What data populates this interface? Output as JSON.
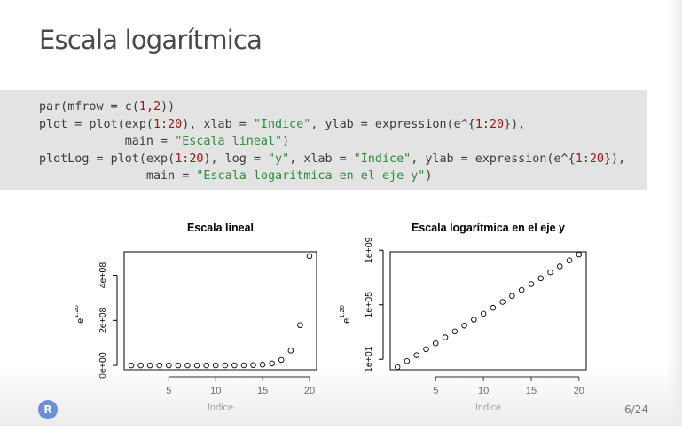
{
  "slide": {
    "title": "Escala logarítmica",
    "page_number": "6/24",
    "logo_text": "R"
  },
  "code": {
    "lines": [
      [
        {
          "t": "par(mfrow = c(",
          "c": "plain"
        },
        {
          "t": "1",
          "c": "num"
        },
        {
          "t": ",",
          "c": "plain"
        },
        {
          "t": "2",
          "c": "num"
        },
        {
          "t": "))",
          "c": "plain"
        }
      ],
      [
        {
          "t": "plot = plot(exp(",
          "c": "plain"
        },
        {
          "t": "1",
          "c": "num"
        },
        {
          "t": ":",
          "c": "plain"
        },
        {
          "t": "20",
          "c": "num"
        },
        {
          "t": "), xlab = ",
          "c": "plain"
        },
        {
          "t": "\"Indice\"",
          "c": "str"
        },
        {
          "t": ", ylab = expression(e^{",
          "c": "plain"
        },
        {
          "t": "1",
          "c": "num"
        },
        {
          "t": ":",
          "c": "plain"
        },
        {
          "t": "20",
          "c": "num"
        },
        {
          "t": "}),",
          "c": "plain"
        }
      ],
      [
        {
          "t": "            main = ",
          "c": "plain"
        },
        {
          "t": "\"Escala lineal\"",
          "c": "str"
        },
        {
          "t": ")",
          "c": "plain"
        }
      ],
      [
        {
          "t": "plotLog = plot(exp(",
          "c": "plain"
        },
        {
          "t": "1",
          "c": "num"
        },
        {
          "t": ":",
          "c": "plain"
        },
        {
          "t": "20",
          "c": "num"
        },
        {
          "t": "), log = ",
          "c": "plain"
        },
        {
          "t": "\"y\"",
          "c": "str"
        },
        {
          "t": ", xlab = ",
          "c": "plain"
        },
        {
          "t": "\"Indice\"",
          "c": "str"
        },
        {
          "t": ", ylab = expression(e^{",
          "c": "plain"
        },
        {
          "t": "1",
          "c": "num"
        },
        {
          "t": ":",
          "c": "plain"
        },
        {
          "t": "20",
          "c": "num"
        },
        {
          "t": "}),",
          "c": "plain"
        }
      ],
      [
        {
          "t": "               main = ",
          "c": "plain"
        },
        {
          "t": "\"Escala logaritmica en el eje y\"",
          "c": "str"
        },
        {
          "t": ")",
          "c": "plain"
        }
      ]
    ]
  },
  "colors": {
    "code_number": "#a31515",
    "code_string": "#2e8b3a",
    "code_background": "#e3e3e3",
    "logo": "#6c8fd6"
  },
  "chart_data": [
    {
      "type": "scatter",
      "title": "Escala lineal",
      "xlabel": "Indice",
      "ylabel_base": "e",
      "ylabel_exp": "1:20",
      "y_scale": "linear",
      "x": [
        1,
        2,
        3,
        4,
        5,
        6,
        7,
        8,
        9,
        10,
        11,
        12,
        13,
        14,
        15,
        16,
        17,
        18,
        19,
        20
      ],
      "y": [
        2.718,
        7.389,
        20.09,
        54.6,
        148.4,
        403.4,
        1096.6,
        2981,
        8103,
        22026,
        59874,
        162755,
        442413,
        1202604,
        3269017,
        8886111,
        24154953,
        65659969,
        178482301,
        485165195
      ],
      "x_ticks": [
        5,
        10,
        15,
        20
      ],
      "x_tick_labels": [
        "5",
        "10",
        "15",
        "20"
      ],
      "y_ticks": [
        0,
        200000000,
        400000000
      ],
      "y_tick_labels": [
        "0e+00",
        "2e+08",
        "4e+08"
      ],
      "xlim": [
        0.24,
        20.76
      ],
      "ylim": [
        -19406497,
        504574410
      ],
      "marker": "open-circle",
      "grid": false
    },
    {
      "type": "scatter",
      "title": "Escala logarítmica en el eje y",
      "xlabel": "Indice",
      "ylabel_base": "e",
      "ylabel_exp": "1:20",
      "y_scale": "log",
      "x": [
        1,
        2,
        3,
        4,
        5,
        6,
        7,
        8,
        9,
        10,
        11,
        12,
        13,
        14,
        15,
        16,
        17,
        18,
        19,
        20
      ],
      "y": [
        2.718,
        7.389,
        20.09,
        54.6,
        148.4,
        403.4,
        1096.6,
        2981,
        8103,
        22026,
        59874,
        162755,
        442413,
        1202604,
        3269017,
        8886111,
        24154953,
        65659969,
        178482301,
        485165195
      ],
      "x_ticks": [
        5,
        10,
        15,
        20
      ],
      "x_tick_labels": [
        "5",
        "10",
        "15",
        "20"
      ],
      "y_ticks": [
        10,
        100000,
        1000000000
      ],
      "y_tick_labels": [
        "1e+01",
        "1e+05",
        "1e+09"
      ],
      "xlim": [
        0.24,
        20.76
      ],
      "ylim": [
        1.716,
        768900000
      ],
      "marker": "open-circle",
      "grid": false
    }
  ]
}
